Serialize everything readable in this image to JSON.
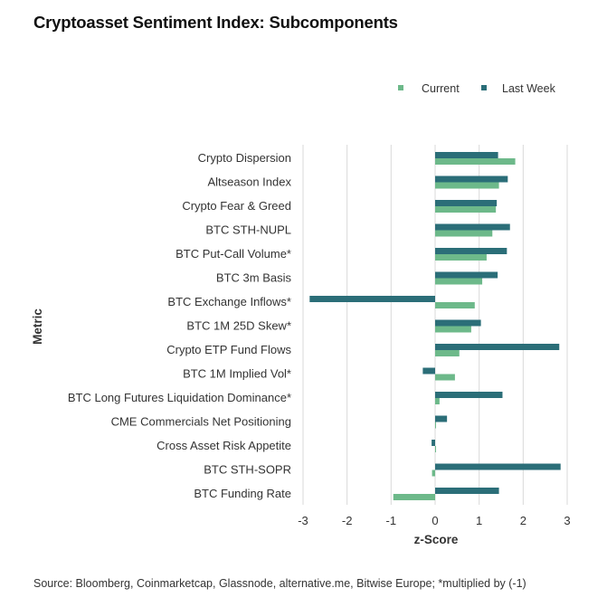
{
  "title": "Cryptoasset Sentiment Index: Subcomponents",
  "source": "Source: Bloomberg, Coinmarketcap, Glassnode, alternative.me, Bitwise Europe; *multiplied by (-1)",
  "colors": {
    "current": "#6db98a",
    "last_week": "#2b6e78",
    "grid": "#d9d9d9"
  },
  "chart_data": {
    "type": "bar",
    "orientation": "horizontal",
    "xlabel": "z-Score",
    "ylabel": "Metric",
    "xlim": [
      -3,
      3
    ],
    "xticks": [
      "-3",
      "-2",
      "-1",
      "0",
      "1",
      "2",
      "3"
    ],
    "grid": true,
    "legend_position": "top-right",
    "categories": [
      "Crypto Dispersion",
      "Altseason Index",
      "Crypto Fear & Greed",
      "BTC STH-NUPL",
      "BTC Put-Call Volume*",
      "BTC 3m Basis",
      "BTC Exchange Inflows*",
      "BTC 1M 25D Skew*",
      "Crypto ETP Fund Flows",
      "BTC 1M Implied Vol*",
      "BTC Long Futures Liquidation Dominance*",
      "CME Commercials Net Positioning",
      "Cross Asset Risk Appetite",
      "BTC STH-SOPR",
      "BTC Funding Rate"
    ],
    "series": [
      {
        "name": "Current",
        "values": [
          1.82,
          1.45,
          1.38,
          1.3,
          1.17,
          1.07,
          0.9,
          0.82,
          0.55,
          0.45,
          0.1,
          0.02,
          0.02,
          -0.07,
          -0.95
        ]
      },
      {
        "name": "Last Week",
        "values": [
          1.43,
          1.65,
          1.4,
          1.7,
          1.63,
          1.42,
          -2.85,
          1.04,
          2.82,
          -0.28,
          1.53,
          0.27,
          -0.08,
          2.85,
          1.45
        ]
      }
    ]
  }
}
